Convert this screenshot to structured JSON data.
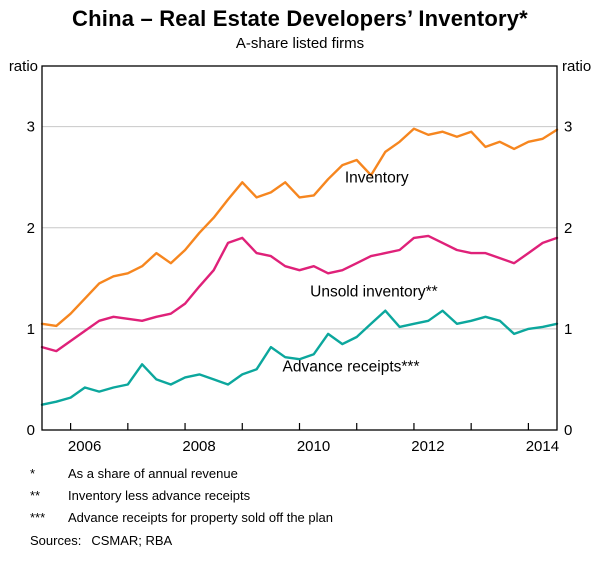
{
  "title": "China – Real Estate Developers’ Inventory*",
  "subtitle": "A-share listed firms",
  "chart_data": {
    "type": "line",
    "title": "China – Real Estate Developers’ Inventory*",
    "subtitle": "A-share listed firms",
    "ylabel": "ratio",
    "ylabel_right": "ratio",
    "ylim": [
      0,
      3.6
    ],
    "yticks": [
      0,
      1,
      2,
      3
    ],
    "xlim": [
      2005.5,
      2014.5
    ],
    "xticks_minor": [
      2006,
      2007,
      2008,
      2009,
      2010,
      2011,
      2012,
      2013,
      2014
    ],
    "xticks_labeled": [
      2006,
      2008,
      2010,
      2012,
      2014
    ],
    "grid": "horizontal",
    "legend": "inline-annotations",
    "x": [
      2005.5,
      2005.75,
      2006.0,
      2006.25,
      2006.5,
      2006.75,
      2007.0,
      2007.25,
      2007.5,
      2007.75,
      2008.0,
      2008.25,
      2008.5,
      2008.75,
      2009.0,
      2009.25,
      2009.5,
      2009.75,
      2010.0,
      2010.25,
      2010.5,
      2010.75,
      2011.0,
      2011.25,
      2011.5,
      2011.75,
      2012.0,
      2012.25,
      2012.5,
      2012.75,
      2013.0,
      2013.25,
      2013.5,
      2013.75,
      2014.0,
      2014.25,
      2014.5
    ],
    "series": [
      {
        "name": "Inventory",
        "color": "#F6861F",
        "values": [
          1.05,
          1.03,
          1.15,
          1.3,
          1.45,
          1.52,
          1.55,
          1.62,
          1.75,
          1.65,
          1.78,
          1.95,
          2.1,
          2.28,
          2.45,
          2.3,
          2.35,
          2.45,
          2.3,
          2.32,
          2.48,
          2.62,
          2.67,
          2.52,
          2.75,
          2.85,
          2.98,
          2.92,
          2.95,
          2.9,
          2.95,
          2.8,
          2.85,
          2.78,
          2.85,
          2.88,
          2.97
        ],
        "label": {
          "text": "Inventory",
          "x": 2011.35,
          "y": 2.45
        }
      },
      {
        "name": "Unsold inventory**",
        "color": "#DF2179",
        "values": [
          0.82,
          0.78,
          0.88,
          0.98,
          1.08,
          1.12,
          1.1,
          1.08,
          1.12,
          1.15,
          1.25,
          1.42,
          1.58,
          1.85,
          1.9,
          1.75,
          1.72,
          1.62,
          1.58,
          1.62,
          1.55,
          1.58,
          1.65,
          1.72,
          1.75,
          1.78,
          1.9,
          1.92,
          1.85,
          1.78,
          1.75,
          1.75,
          1.7,
          1.65,
          1.75,
          1.85,
          1.9
        ],
        "label": {
          "text": "Unsold inventory**",
          "x": 2011.3,
          "y": 1.32
        }
      },
      {
        "name": "Advance receipts***",
        "color": "#0CA79D",
        "values": [
          0.25,
          0.28,
          0.32,
          0.42,
          0.38,
          0.42,
          0.45,
          0.65,
          0.5,
          0.45,
          0.52,
          0.55,
          0.5,
          0.45,
          0.55,
          0.6,
          0.82,
          0.72,
          0.7,
          0.75,
          0.95,
          0.85,
          0.92,
          1.05,
          1.18,
          1.02,
          1.05,
          1.08,
          1.18,
          1.05,
          1.08,
          1.12,
          1.08,
          0.95,
          1.0,
          1.02,
          1.05
        ],
        "label": {
          "text": "Advance receipts***",
          "x": 2010.9,
          "y": 0.58
        }
      }
    ]
  },
  "footnotes": [
    {
      "marker": "*",
      "text": "As a share of annual revenue"
    },
    {
      "marker": "**",
      "text": "Inventory less advance receipts"
    },
    {
      "marker": "***",
      "text": "Advance receipts for property sold off the plan"
    }
  ],
  "sources": {
    "label": "Sources:",
    "text": "CSMAR; RBA"
  }
}
